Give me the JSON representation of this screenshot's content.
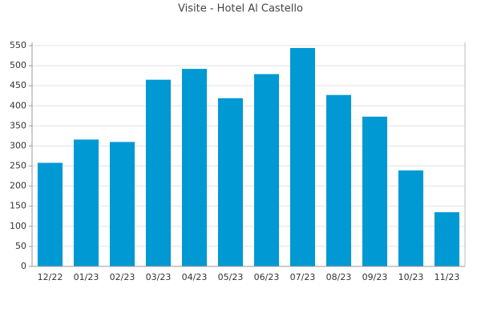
{
  "chart_data": {
    "type": "bar",
    "title": "Visite - Hotel Al Castello",
    "categories": [
      "12/22",
      "01/23",
      "02/23",
      "03/23",
      "04/23",
      "05/23",
      "06/23",
      "07/23",
      "08/23",
      "09/23",
      "10/23",
      "11/23"
    ],
    "values": [
      258,
      316,
      310,
      465,
      492,
      419,
      479,
      544,
      427,
      373,
      239,
      135
    ],
    "color": "#0099d4",
    "ylim": [
      0,
      550
    ],
    "yticks": [
      0,
      50,
      100,
      150,
      200,
      250,
      300,
      350,
      400,
      450,
      500,
      550
    ],
    "grid": true
  }
}
